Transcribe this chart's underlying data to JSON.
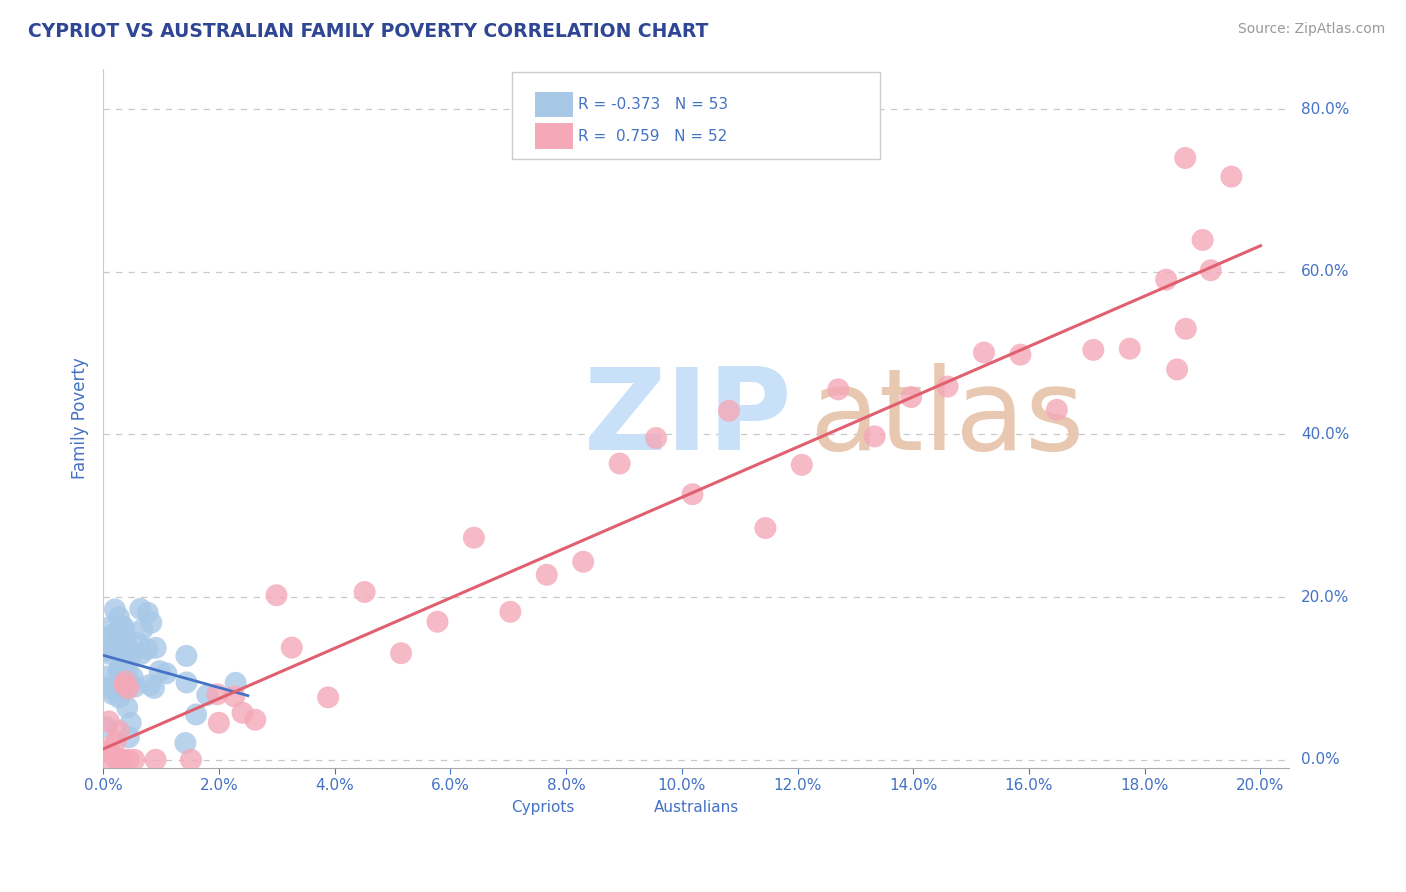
{
  "title": "CYPRIOT VS AUSTRALIAN FAMILY POVERTY CORRELATION CHART",
  "source_text": "Source: ZipAtlas.com",
  "ylabel": "Family Poverty",
  "xlim": [
    0.0,
    0.205
  ],
  "ylim": [
    -0.01,
    0.85
  ],
  "cypriot_R": -0.373,
  "cypriot_N": 53,
  "australian_R": 0.759,
  "australian_N": 52,
  "cypriot_color": "#a8c8e8",
  "australian_color": "#f4a8b8",
  "cypriot_line_color": "#4472c4",
  "australian_line_color": "#e06070",
  "title_color": "#2e4693",
  "tick_color": "#4472c4",
  "watermark_zip_color": "#c8e0f8",
  "watermark_atlas_color": "#e8c8b0",
  "background_color": "#ffffff",
  "grid_color": "#c8c8c8",
  "ytick_vals": [
    0.0,
    0.2,
    0.4,
    0.6,
    0.8
  ],
  "xtick_vals": [
    0.0,
    0.02,
    0.04,
    0.06,
    0.08,
    0.1,
    0.12,
    0.14,
    0.16,
    0.18,
    0.2
  ]
}
